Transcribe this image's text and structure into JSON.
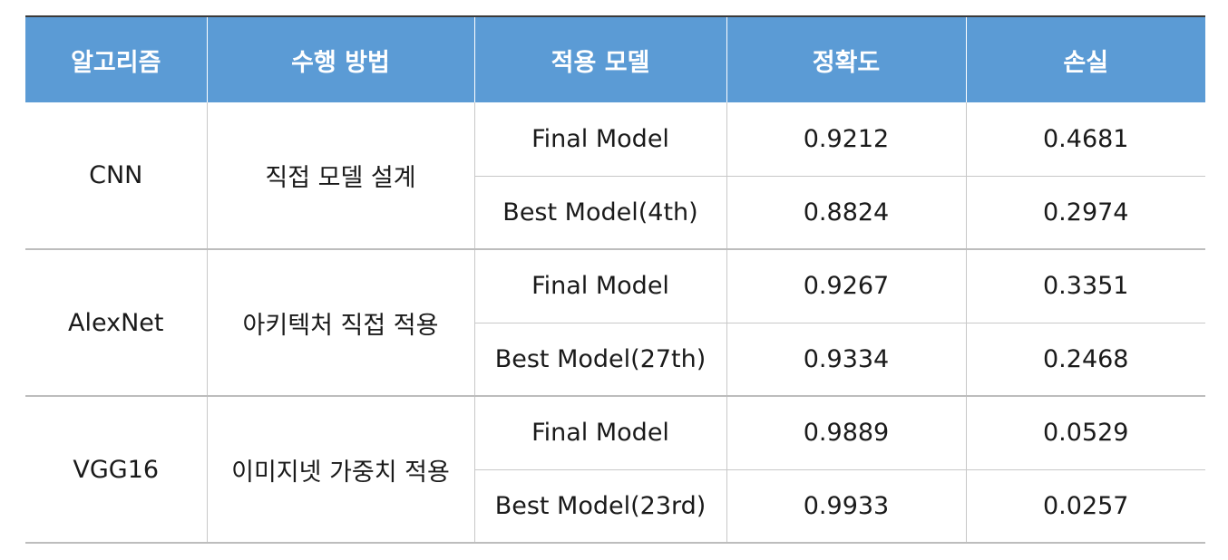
{
  "table": {
    "headers": [
      "알고리즘",
      "수행 방법",
      "적용 모델",
      "정확도",
      "손실"
    ],
    "groups": [
      {
        "algorithm": "CNN",
        "method": "직접 모델 설계",
        "rows": [
          {
            "model": "Final Model",
            "accuracy": "0.9212",
            "loss": "0.4681"
          },
          {
            "model": "Best Model(4th)",
            "accuracy": "0.8824",
            "loss": "0.2974"
          }
        ]
      },
      {
        "algorithm": "AlexNet",
        "method": "아키텍처 직접 적용",
        "rows": [
          {
            "model": "Final Model",
            "accuracy": "0.9267",
            "loss": "0.3351"
          },
          {
            "model": "Best Model(27th)",
            "accuracy": "0.9334",
            "loss": "0.2468"
          }
        ]
      },
      {
        "algorithm": "VGG16",
        "method": "이미지넷 가중치 적용",
        "rows": [
          {
            "model": "Final Model",
            "accuracy": "0.9889",
            "loss": "0.0529"
          },
          {
            "model": "Best Model(23rd)",
            "accuracy": "0.9933",
            "loss": "0.0257"
          }
        ]
      }
    ]
  },
  "colors": {
    "header_bg": "#5b9bd5",
    "header_text": "#ffffff",
    "grid_line": "#c8c8c8"
  }
}
